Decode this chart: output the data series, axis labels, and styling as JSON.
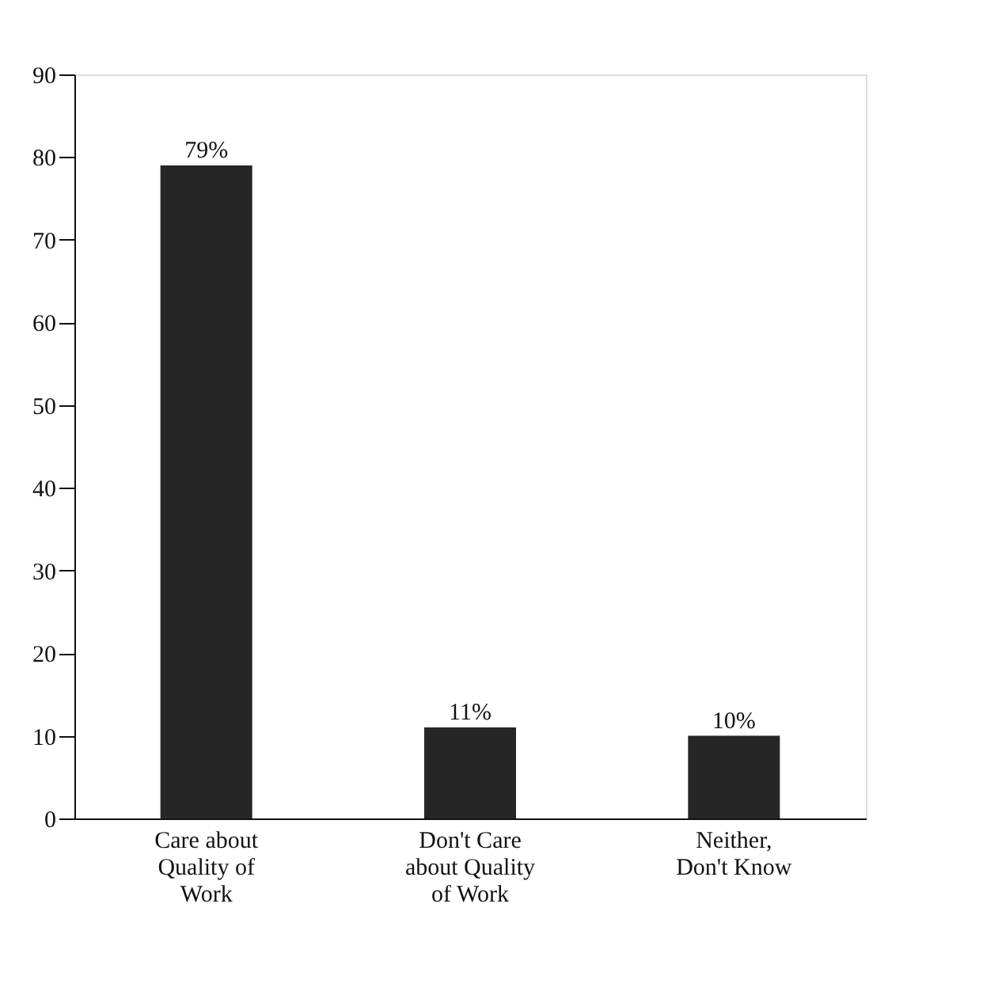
{
  "chart_data": {
    "type": "bar",
    "categories": [
      "Care about Quality of Work",
      "Don't Care about Quality of Work",
      "Neither, Don't Know"
    ],
    "values": [
      79,
      11,
      10
    ],
    "value_labels": [
      "79%",
      "11%",
      "10%"
    ],
    "color": "#262626",
    "ylim": [
      0,
      90
    ],
    "yticks": [
      0,
      10,
      20,
      30,
      40,
      50,
      60,
      70,
      80,
      90
    ],
    "grid": false
  }
}
